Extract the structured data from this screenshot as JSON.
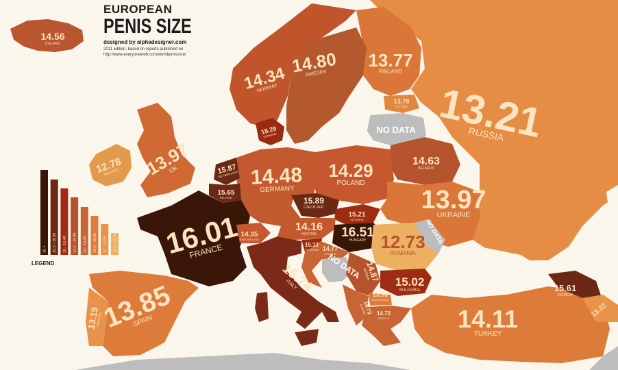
{
  "header": {
    "title_line1": "EUROPEAN",
    "title_line2": "PENIS SIZE",
    "credit": "designed by alphadesigner.com",
    "note_line1": "2011 edition, based on reports published on",
    "note_line2": "http://www.everyoneweb.com/worldpenissize/"
  },
  "legend": {
    "title": "LEGEND",
    "bins": [
      {
        "label": "16 +",
        "color": "#3a1608"
      },
      {
        "label": "15.5 - 15.99",
        "color": "#6b2815"
      },
      {
        "label": "15 - 15.49",
        "color": "#9e2c12"
      },
      {
        "label": "14.5 - 14.99",
        "color": "#b5532c"
      },
      {
        "label": "14 - 14.49",
        "color": "#c86534"
      },
      {
        "label": "13.5 - 13.99",
        "color": "#dd7b3a"
      },
      {
        "label": "13 - 13.49",
        "color": "#e8934a"
      },
      {
        "label": "12.5 - 12.99",
        "color": "#edb060"
      }
    ]
  },
  "countries": {
    "iceland": {
      "name": "ICELAND",
      "value": "14.56"
    },
    "norway": {
      "name": "NORWAY",
      "value": "14.34"
    },
    "sweden": {
      "name": "SWEDEN",
      "value": "14.80"
    },
    "finland": {
      "name": "FINLAND",
      "value": "13.77"
    },
    "estonia": {
      "name": "ESTONIA",
      "value": "13.78"
    },
    "latvia": {
      "name": "",
      "value": "NO DATA"
    },
    "russia": {
      "name": "RUSSIA",
      "value": "13.21"
    },
    "denmark": {
      "name": "DENMARK",
      "value": "15.29"
    },
    "ireland": {
      "name": "IRELAND",
      "value": "12.78"
    },
    "uk": {
      "name": "UK",
      "value": "13.97"
    },
    "netherlands": {
      "name": "NETHERLANDS",
      "value": "15.87"
    },
    "belgium": {
      "name": "BELGIUM",
      "value": "15.65"
    },
    "germany": {
      "name": "GERMANY",
      "value": "14.48"
    },
    "poland": {
      "name": "POLAND",
      "value": "14.29"
    },
    "belarus": {
      "name": "BELARUS",
      "value": "14.63"
    },
    "czech": {
      "name": "CZECH REP.",
      "value": "15.89"
    },
    "slovakia": {
      "name": "SLOVAKIA",
      "value": "15.21"
    },
    "ukraine": {
      "name": "UKRAINE",
      "value": "13.97"
    },
    "moldova": {
      "name": "",
      "value": "NO DATA"
    },
    "france": {
      "name": "FRANCE",
      "value": "16.01"
    },
    "switzerland": {
      "name": "SWITZERLAND",
      "value": "14.35"
    },
    "austria": {
      "name": "AUSTRIA",
      "value": "14.16"
    },
    "hungary": {
      "name": "HUNGARY",
      "value": "16.51"
    },
    "slovenia": {
      "name": "SLOVENIA",
      "value": "15.13"
    },
    "croatia": {
      "name": "CROATIA",
      "value": "14.77"
    },
    "bosnia": {
      "name": "",
      "value": "NO DATA"
    },
    "serbia": {
      "name": "SERBIA",
      "value": "14.87"
    },
    "romania": {
      "name": "ROMANIA",
      "value": "12.73"
    },
    "bulgaria": {
      "name": "BULGARIA",
      "value": "15.02"
    },
    "macedonia": {
      "name": "MACEDONIA",
      "value": "13.98"
    },
    "albania": {
      "name": "ALBANIA",
      "value": "14.73"
    },
    "greece": {
      "name": "GREECE",
      "value": "14.73"
    },
    "italy": {
      "name": "ITALY",
      "value": "15.74"
    },
    "spain": {
      "name": "SPAIN",
      "value": "13.85"
    },
    "portugal": {
      "name": "PORTUGAL",
      "value": "13.19"
    },
    "turkey": {
      "name": "TURKEY",
      "value": "14.11"
    },
    "georgia": {
      "name": "GEORGIA",
      "value": "15.61"
    },
    "azerbaijan": {
      "name": "",
      "value": "13.22"
    }
  }
}
